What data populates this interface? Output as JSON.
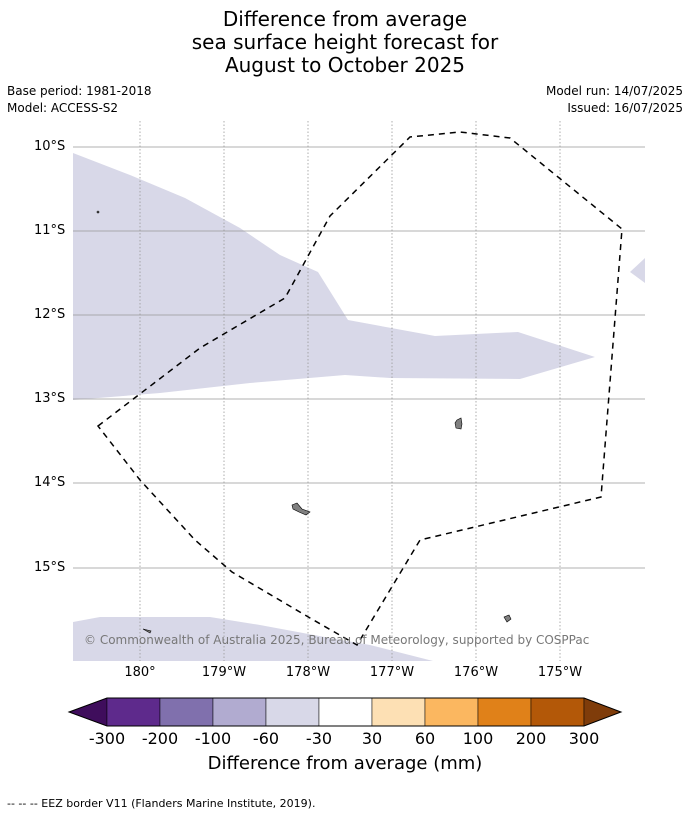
{
  "title": {
    "line1": "Difference from average",
    "line2": "sea surface height forecast for",
    "line3": "August to October 2025"
  },
  "meta_left": {
    "base_period": "Base period: 1981-2018",
    "model": "Model: ACCESS-S2"
  },
  "meta_right": {
    "model_run": "Model run: 14/07/2025",
    "issued": "Issued: 16/07/2025"
  },
  "map": {
    "lat_labels": [
      "10°S",
      "11°S",
      "12°S",
      "13°S",
      "14°S",
      "15°S"
    ],
    "lon_labels": [
      "180°",
      "179°W",
      "178°W",
      "177°W",
      "176°W",
      "175°W"
    ],
    "ocean_color": "#ffffff",
    "anomaly_color": "#d8d8e8",
    "land_color": "#808080",
    "eez_border_style": "dashed black",
    "copyright": "© Commonwealth of Australia 2025, Bureau of Meteorology, supported by COSPPac"
  },
  "colorbar": {
    "tick_labels": [
      "-300",
      "-200",
      "-100",
      "-60",
      "-30",
      "30",
      "60",
      "100",
      "200",
      "300"
    ],
    "colors": [
      "#3f0d5c",
      "#5e2a8c",
      "#8070ad",
      "#b1abd0",
      "#d8d8e8",
      "#ffffff",
      "#fde0b4",
      "#fbb760",
      "#e08119",
      "#b35808",
      "#7f3c0a"
    ],
    "title": "Difference from average (mm)"
  },
  "footer": {
    "legend_text": "--  --  -- EEZ border V11 (Flanders Marine Institute, 2019)."
  }
}
